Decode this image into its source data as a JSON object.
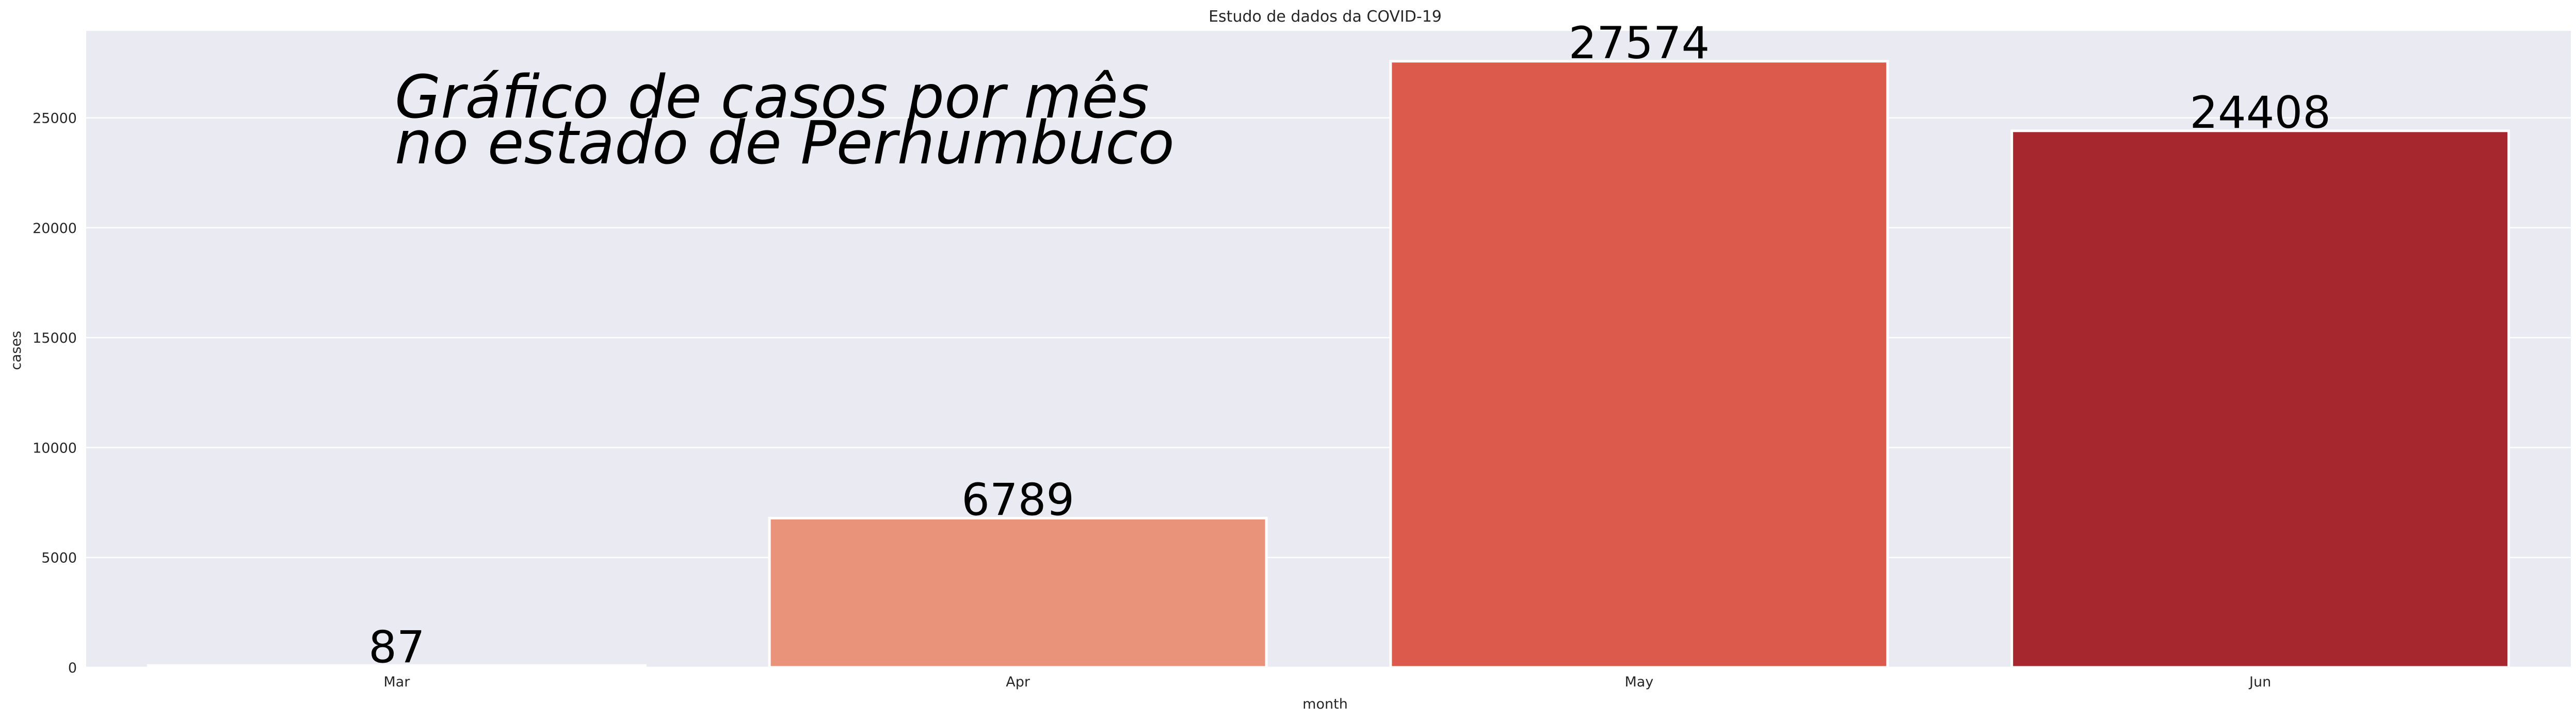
{
  "chart_data": {
    "type": "bar",
    "title": "Estudo de dados da COVID-19",
    "xlabel": "month",
    "ylabel": "cases",
    "categories": [
      "Mar",
      "Apr",
      "May",
      "Jun"
    ],
    "values": [
      87,
      6789,
      27574,
      24408
    ],
    "data_labels": [
      "87",
      "6789",
      "27574",
      "24408"
    ],
    "colors": [
      "#fcbba1",
      "#e9937b",
      "#db5a4c",
      "#a7272e"
    ],
    "ylim": [
      0,
      28952
    ],
    "yticks": [
      0,
      5000,
      10000,
      15000,
      20000,
      25000
    ],
    "grid": true,
    "annotation": [
      "Gráfico de casos por mês",
      "no estado de Perhumbuco"
    ],
    "background": "#eaeaf2",
    "gridColor": "#ffffff"
  }
}
